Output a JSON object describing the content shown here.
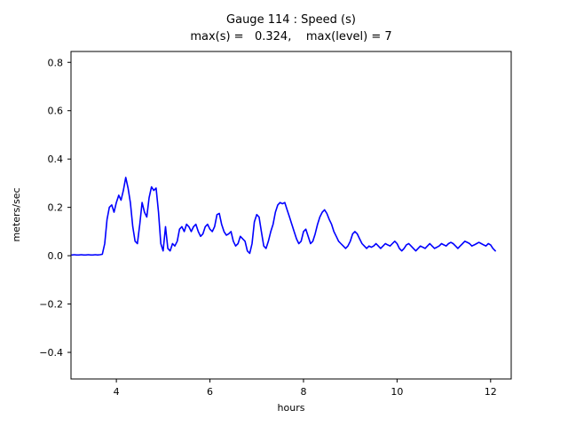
{
  "chart_data": {
    "type": "line",
    "title": "Gauge 114 : Speed (s)",
    "subtitle": "max(s) =   0.324,    max(level) = 7",
    "xlabel": "hours",
    "ylabel": "meters/sec",
    "xlim": [
      3.03,
      12.44
    ],
    "ylim": [
      -0.51,
      0.845
    ],
    "grid": false,
    "legend": "none",
    "line_color": "#0000ff",
    "axis_color": "#000000",
    "xticks": {
      "values": [
        4,
        6,
        8,
        10,
        12
      ],
      "labels": [
        "4",
        "6",
        "8",
        "10",
        "12"
      ]
    },
    "yticks": {
      "values": [
        -0.4,
        -0.2,
        0.0,
        0.2,
        0.4,
        0.6,
        0.8
      ],
      "labels": [
        "−0.4",
        "−0.2",
        "0.0",
        "0.2",
        "0.4",
        "0.6",
        "0.8"
      ]
    },
    "stats": {
      "max_s": 0.324,
      "max_level": 7
    },
    "series": [
      {
        "name": "speed",
        "x_start": 3.05,
        "x_step": 0.05,
        "y": [
          0.003,
          0.004,
          0.003,
          0.003,
          0.004,
          0.003,
          0.003,
          0.004,
          0.003,
          0.003,
          0.004,
          0.003,
          0.004,
          0.006,
          0.05,
          0.15,
          0.2,
          0.21,
          0.18,
          0.22,
          0.25,
          0.23,
          0.27,
          0.324,
          0.28,
          0.22,
          0.12,
          0.06,
          0.05,
          0.13,
          0.22,
          0.18,
          0.16,
          0.24,
          0.285,
          0.27,
          0.28,
          0.18,
          0.05,
          0.02,
          0.12,
          0.03,
          0.02,
          0.05,
          0.04,
          0.06,
          0.11,
          0.12,
          0.1,
          0.13,
          0.12,
          0.1,
          0.12,
          0.13,
          0.1,
          0.08,
          0.09,
          0.12,
          0.13,
          0.11,
          0.1,
          0.12,
          0.17,
          0.175,
          0.13,
          0.1,
          0.085,
          0.09,
          0.1,
          0.06,
          0.04,
          0.05,
          0.08,
          0.07,
          0.06,
          0.02,
          0.01,
          0.05,
          0.14,
          0.17,
          0.16,
          0.1,
          0.04,
          0.03,
          0.06,
          0.1,
          0.13,
          0.18,
          0.21,
          0.22,
          0.215,
          0.22,
          0.19,
          0.16,
          0.13,
          0.1,
          0.07,
          0.05,
          0.06,
          0.1,
          0.11,
          0.08,
          0.05,
          0.06,
          0.09,
          0.13,
          0.16,
          0.18,
          0.19,
          0.175,
          0.15,
          0.13,
          0.1,
          0.08,
          0.06,
          0.05,
          0.04,
          0.03,
          0.04,
          0.06,
          0.09,
          0.1,
          0.09,
          0.07,
          0.05,
          0.04,
          0.03,
          0.04,
          0.035,
          0.04,
          0.05,
          0.04,
          0.03,
          0.04,
          0.05,
          0.045,
          0.04,
          0.05,
          0.06,
          0.05,
          0.03,
          0.02,
          0.03,
          0.045,
          0.05,
          0.04,
          0.03,
          0.02,
          0.03,
          0.04,
          0.035,
          0.03,
          0.04,
          0.05,
          0.04,
          0.03,
          0.035,
          0.04,
          0.05,
          0.045,
          0.04,
          0.05,
          0.055,
          0.05,
          0.04,
          0.03,
          0.04,
          0.05,
          0.06,
          0.055,
          0.05,
          0.04,
          0.045,
          0.05,
          0.055,
          0.05,
          0.045,
          0.04,
          0.05,
          0.045,
          0.03,
          0.02
        ]
      }
    ]
  }
}
